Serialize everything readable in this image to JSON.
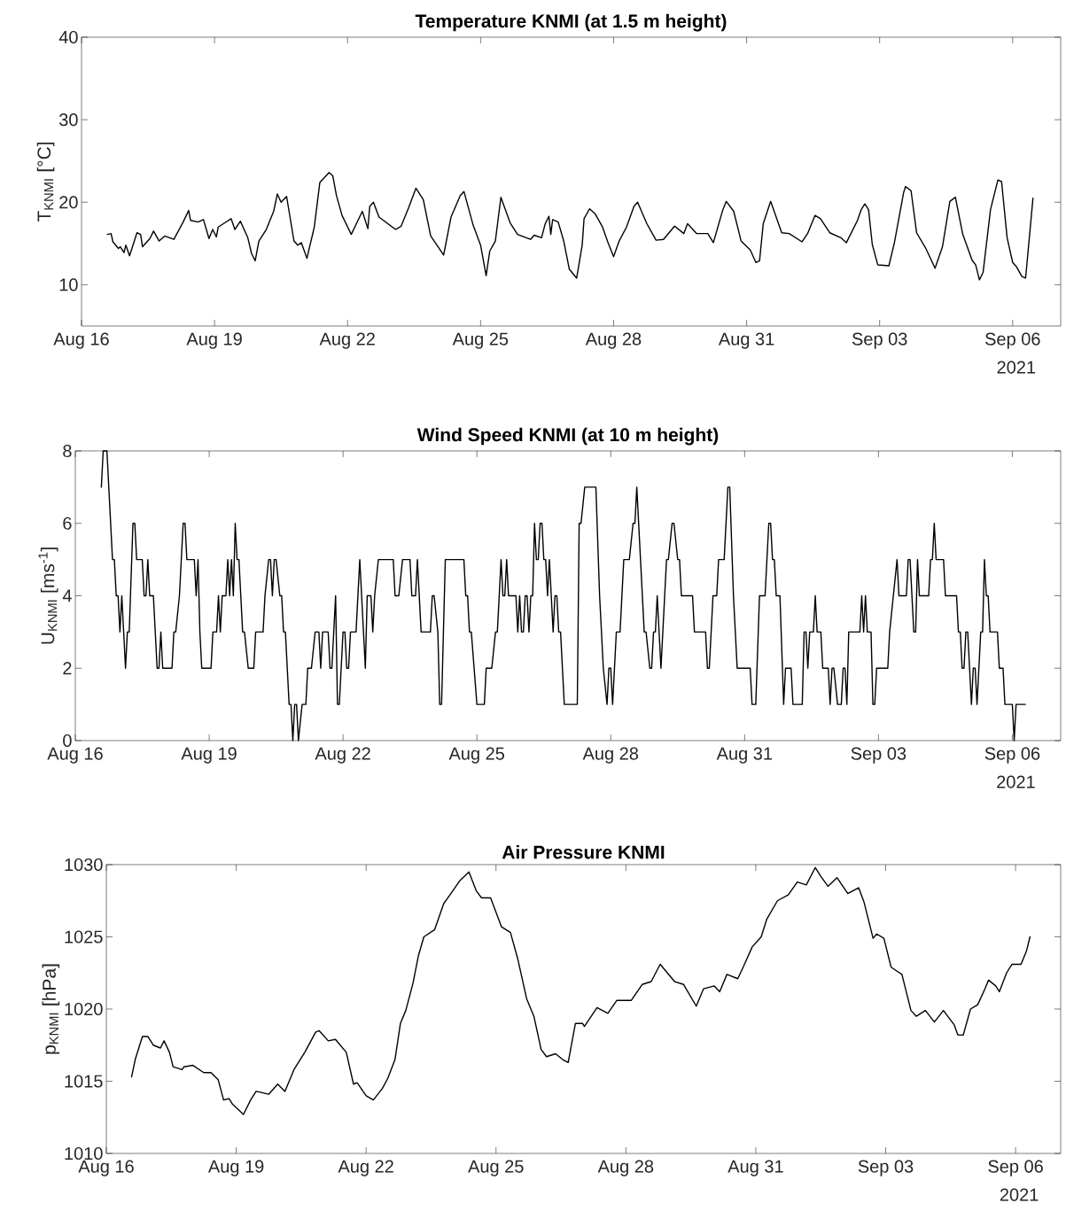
{
  "chart_data": [
    {
      "type": "line",
      "title": "Temperature KNMI (at 1.5 m height)",
      "ylabel": "T$_{KNMI}$ [°C]",
      "color": "#000000",
      "xlim": [
        "2021-08-16",
        "2021-09-07T02:00"
      ],
      "ylim": [
        5,
        40
      ],
      "yticks": [
        10,
        20,
        30,
        40
      ],
      "xticks": [
        {
          "value": "2021-08-16",
          "label": "Aug 16"
        },
        {
          "value": "2021-08-19",
          "label": "Aug 19"
        },
        {
          "value": "2021-08-22",
          "label": "Aug 22"
        },
        {
          "value": "2021-08-25",
          "label": "Aug 25"
        },
        {
          "value": "2021-08-28",
          "label": "Aug 28"
        },
        {
          "value": "2021-08-31",
          "label": "Aug 31"
        },
        {
          "value": "2021-09-03",
          "label": "Sep 03"
        },
        {
          "value": "2021-09-06",
          "label": "Sep 06"
        }
      ],
      "annotations": [
        "2021"
      ],
      "x": [
        "2021-08-16T14:00",
        "2021-08-16T16:00",
        "2021-08-16T17:00",
        "2021-08-16T20:00",
        "2021-08-16T21:00",
        "2021-08-16T23:00",
        "2021-08-17T00:00",
        "2021-08-17T02:00",
        "2021-08-17T06:00",
        "2021-08-17T08:00",
        "2021-08-17T09:00",
        "2021-08-17T13:00",
        "2021-08-17T15:00",
        "2021-08-17T18:00",
        "2021-08-17T21:00",
        "2021-08-18T02:00",
        "2021-08-18T07:00",
        "2021-08-18T10:00",
        "2021-08-18T11:00",
        "2021-08-18T15:00",
        "2021-08-18T18:00",
        "2021-08-18T21:00",
        "2021-08-18T23:00",
        "2021-08-19T01:00",
        "2021-08-19T02:00",
        "2021-08-19T09:00",
        "2021-08-19T11:00",
        "2021-08-19T14:00",
        "2021-08-19T18:00",
        "2021-08-19T20:00",
        "2021-08-19T22:00",
        "2021-08-20T00:00",
        "2021-08-20T04:00",
        "2021-08-20T08:00",
        "2021-08-20T10:00",
        "2021-08-20T12:00",
        "2021-08-20T15:00",
        "2021-08-20T19:00",
        "2021-08-20T21:00",
        "2021-08-20T23:00",
        "2021-08-21T02:00",
        "2021-08-21T06:00",
        "2021-08-21T09:00",
        "2021-08-21T14:00",
        "2021-08-21T16:00",
        "2021-08-21T18:00",
        "2021-08-21T21:00",
        "2021-08-22T02:00",
        "2021-08-22T08:00",
        "2021-08-22T11:00",
        "2021-08-22T12:00",
        "2021-08-22T14:00",
        "2021-08-22T17:00",
        "2021-08-23T02:00",
        "2021-08-23T05:00",
        "2021-08-23T09:00",
        "2021-08-23T13:00",
        "2021-08-23T17:00",
        "2021-08-23T21:00",
        "2021-08-24T04:00",
        "2021-08-24T08:00",
        "2021-08-24T13:00",
        "2021-08-24T15:00",
        "2021-08-24T20:00",
        "2021-08-25T00:00",
        "2021-08-25T03:00",
        "2021-08-25T05:00",
        "2021-08-25T08:00",
        "2021-08-25T11:00",
        "2021-08-25T16:00",
        "2021-08-25T20:00",
        "2021-08-26T03:00",
        "2021-08-26T05:00",
        "2021-08-26T09:00",
        "2021-08-26T11:00",
        "2021-08-26T13:00",
        "2021-08-26T14:00",
        "2021-08-26T15:00",
        "2021-08-26T18:00",
        "2021-08-26T21:00",
        "2021-08-27T00:00",
        "2021-08-27T04:00",
        "2021-08-27T07:00",
        "2021-08-27T08:00",
        "2021-08-27T11:00",
        "2021-08-27T14:00",
        "2021-08-27T18:00",
        "2021-08-27T21:00",
        "2021-08-28T00:00",
        "2021-08-28T03:00",
        "2021-08-28T07:00",
        "2021-08-28T11:00",
        "2021-08-28T13:00",
        "2021-08-28T18:00",
        "2021-08-28T23:00",
        "2021-08-29T03:00",
        "2021-08-29T09:00",
        "2021-08-29T14:00",
        "2021-08-29T16:00",
        "2021-08-29T21:00",
        "2021-08-30T03:00",
        "2021-08-30T06:00",
        "2021-08-30T11:00",
        "2021-08-30T13:00",
        "2021-08-30T17:00",
        "2021-08-30T21:00",
        "2021-08-31T02:00",
        "2021-08-31T05:00",
        "2021-08-31T07:00",
        "2021-08-31T09:00",
        "2021-08-31T13:00",
        "2021-08-31T19:00",
        "2021-08-31T23:00",
        "2021-09-01T06:00",
        "2021-09-01T09:00",
        "2021-09-01T13:00",
        "2021-09-01T16:00",
        "2021-09-01T21:00",
        "2021-09-02T03:00",
        "2021-09-02T06:00",
        "2021-09-02T12:00",
        "2021-09-02T14:00",
        "2021-09-02T16:00",
        "2021-09-02T18:00",
        "2021-09-02T20:00",
        "2021-09-02T23:00",
        "2021-09-03T05:00",
        "2021-09-03T08:00",
        "2021-09-03T13:00",
        "2021-09-03T14:00",
        "2021-09-03T17:00",
        "2021-09-03T20:00",
        "2021-09-04T01:00",
        "2021-09-04T06:00",
        "2021-09-04T10:00",
        "2021-09-04T14:00",
        "2021-09-04T17:00",
        "2021-09-04T21:00",
        "2021-09-05T02:00",
        "2021-09-05T04:00",
        "2021-09-05T06:00",
        "2021-09-05T08:00",
        "2021-09-05T12:00",
        "2021-09-05T16:00",
        "2021-09-05T18:00",
        "2021-09-05T21:00",
        "2021-09-06T00:00",
        "2021-09-06T02:00",
        "2021-09-06T05:00",
        "2021-09-06T07:00",
        "2021-09-06T11:00"
      ],
      "values": [
        16.1,
        16.2,
        15.2,
        14.4,
        14.6,
        13.9,
        14.8,
        13.5,
        16.3,
        16.1,
        14.6,
        15.6,
        16.5,
        15.3,
        15.9,
        15.5,
        17.6,
        19.0,
        17.8,
        17.6,
        17.9,
        15.6,
        16.7,
        15.8,
        17.0,
        18.0,
        16.7,
        17.7,
        15.7,
        13.8,
        12.9,
        15.3,
        16.7,
        18.9,
        21.0,
        20.0,
        20.7,
        15.3,
        14.8,
        15.1,
        13.2,
        17.0,
        22.4,
        23.6,
        23.2,
        20.8,
        18.4,
        16.1,
        18.9,
        16.8,
        19.5,
        20.0,
        18.2,
        16.7,
        17.1,
        19.3,
        21.7,
        20.3,
        15.9,
        13.6,
        18.2,
        20.8,
        21.3,
        17.2,
        14.8,
        11.1,
        14.1,
        15.3,
        20.6,
        17.5,
        16.1,
        15.5,
        16.0,
        15.7,
        17.4,
        18.3,
        16.1,
        17.9,
        17.6,
        15.3,
        11.9,
        10.8,
        14.8,
        18.0,
        19.2,
        18.6,
        17.0,
        15.1,
        13.4,
        15.3,
        17.0,
        19.5,
        20.0,
        17.4,
        15.4,
        15.5,
        17.1,
        16.2,
        17.4,
        16.2,
        16.2,
        15.1,
        19.0,
        20.1,
        18.9,
        15.3,
        14.2,
        12.7,
        12.9,
        17.4,
        20.1,
        16.3,
        16.2,
        15.2,
        16.2,
        18.4,
        18.0,
        16.3,
        15.7,
        15.1,
        17.8,
        19.1,
        19.8,
        19.1,
        14.9,
        12.4,
        12.3,
        15.1,
        21.2,
        21.9,
        21.4,
        16.3,
        14.4,
        12.0,
        14.6,
        20.1,
        20.6,
        16.1,
        13.0,
        12.4,
        10.6,
        11.5,
        19.1,
        22.7,
        22.5,
        15.7,
        12.7,
        12.2,
        11.0,
        10.8,
        20.5
      ]
    },
    {
      "type": "line",
      "title": "Wind Speed KNMI (at 10 m height)",
      "ylabel": "U$_{KNMI}$ [ms$^{-1}$]",
      "color": "#000000",
      "xlim": [
        "2021-08-16",
        "2021-09-07T02:00"
      ],
      "ylim": [
        0,
        8
      ],
      "yticks": [
        0,
        2,
        4,
        6,
        8
      ],
      "xticks": [
        {
          "value": "2021-08-16",
          "label": "Aug 16"
        },
        {
          "value": "2021-08-19",
          "label": "Aug 19"
        },
        {
          "value": "2021-08-22",
          "label": "Aug 22"
        },
        {
          "value": "2021-08-25",
          "label": "Aug 25"
        },
        {
          "value": "2021-08-28",
          "label": "Aug 28"
        },
        {
          "value": "2021-08-31",
          "label": "Aug 31"
        },
        {
          "value": "2021-09-03",
          "label": "Sep 03"
        },
        {
          "value": "2021-09-06",
          "label": "Sep 06"
        }
      ],
      "annotations": [
        "2021"
      ],
      "x": [
        "2021-08-16T14:00",
        "2021-08-16T15:00",
        "2021-08-16T17:00",
        "2021-08-16T20:00",
        "2021-08-16T21:00",
        "2021-08-16T22:00",
        "2021-08-16T23:00",
        "2021-08-17T00:00",
        "2021-08-17T01:00",
        "2021-08-17T03:00",
        "2021-08-17T04:00",
        "2021-08-17T05:00",
        "2021-08-17T07:00",
        "2021-08-17T08:00",
        "2021-08-17T09:00",
        "2021-08-17T12:00",
        "2021-08-17T13:00",
        "2021-08-17T14:00",
        "2021-08-17T15:00",
        "2021-08-17T16:00",
        "2021-08-17T18:00",
        "2021-08-17T20:00",
        "2021-08-17T21:00",
        "2021-08-17T22:00",
        "2021-08-17T23:00",
        "2021-08-18T04:00",
        "2021-08-18T05:00",
        "2021-08-18T06:00",
        "2021-08-18T08:00",
        "2021-08-18T10:00",
        "2021-08-18T11:00",
        "2021-08-18T12:00",
        "2021-08-18T16:00",
        "2021-08-18T17:00",
        "2021-08-18T18:00",
        "2021-08-18T19:00",
        "2021-08-18T20:00",
        "2021-08-19T01:00",
        "2021-08-19T02:00",
        "2021-08-19T04:00",
        "2021-08-19T05:00",
        "2021-08-19T06:00",
        "2021-08-19T07:00",
        "2021-08-19T09:00",
        "2021-08-19T10:00",
        "2021-08-19T11:00",
        "2021-08-19T12:00",
        "2021-08-19T13:00",
        "2021-08-19T14:00",
        "2021-08-19T15:00",
        "2021-08-19T16:00",
        "2021-08-19T18:00",
        "2021-08-19T19:00",
        "2021-08-19T21:00",
        "2021-08-20T00:00",
        "2021-08-20T01:00",
        "2021-08-20T05:00",
        "2021-08-20T06:00",
        "2021-08-20T08:00",
        "2021-08-20T09:00",
        "2021-08-20T10:00",
        "2021-08-20T11:00",
        "2021-08-20T12:00",
        "2021-08-20T14:00",
        "2021-08-20T15:00",
        "2021-08-20T16:00",
        "2021-08-20T17:00",
        "2021-08-20T19:00",
        "2021-08-20T20:00",
        "2021-08-20T21:00",
        "2021-08-20T22:00",
        "2021-08-20T23:00",
        "2021-08-21T00:00",
        "2021-08-21T02:00",
        "2021-08-21T04:00",
        "2021-08-21T05:00",
        "2021-08-21T07:00",
        "2021-08-21T09:00",
        "2021-08-21T11:00",
        "2021-08-21T12:00",
        "2021-08-21T13:00",
        "2021-08-21T16:00",
        "2021-08-21T17:00",
        "2021-08-21T18:00",
        "2021-08-21T20:00",
        "2021-08-21T21:00",
        "2021-08-21T22:00",
        "2021-08-22T00:00",
        "2021-08-22T01:00",
        "2021-08-22T02:00",
        "2021-08-22T03:00",
        "2021-08-22T04:00",
        "2021-08-22T07:00",
        "2021-08-22T09:00",
        "2021-08-22T12:00",
        "2021-08-22T13:00",
        "2021-08-22T15:00",
        "2021-08-22T16:00",
        "2021-08-22T17:00",
        "2021-08-22T19:00",
        "2021-08-23T03:00",
        "2021-08-23T04:00",
        "2021-08-23T06:00",
        "2021-08-23T08:00",
        "2021-08-23T12:00",
        "2021-08-23T13:00",
        "2021-08-23T15:00",
        "2021-08-23T16:00",
        "2021-08-23T18:00",
        "2021-08-23T23:00",
        "2021-08-24T00:00",
        "2021-08-24T01:00",
        "2021-08-24T03:00",
        "2021-08-24T04:00",
        "2021-08-24T05:00",
        "2021-08-24T07:00",
        "2021-08-24T17:00",
        "2021-08-24T18:00",
        "2021-08-24T19:00",
        "2021-08-24T20:00",
        "2021-08-24T21:00",
        "2021-08-25T00:00",
        "2021-08-25T04:00",
        "2021-08-25T05:00",
        "2021-08-25T08:00",
        "2021-08-25T10:00",
        "2021-08-25T11:00",
        "2021-08-25T13:00",
        "2021-08-25T14:00",
        "2021-08-25T15:00",
        "2021-08-25T16:00",
        "2021-08-25T17:00",
        "2021-08-25T21:00",
        "2021-08-25T22:00",
        "2021-08-25T23:00",
        "2021-08-26T00:00",
        "2021-08-26T01:00",
        "2021-08-26T02:00",
        "2021-08-26T03:00",
        "2021-08-26T04:00",
        "2021-08-26T05:00",
        "2021-08-26T06:00",
        "2021-08-26T07:00",
        "2021-08-26T08:00",
        "2021-08-26T09:00",
        "2021-08-26T10:00",
        "2021-08-26T11:00",
        "2021-08-26T12:00",
        "2021-08-26T13:00",
        "2021-08-26T14:00",
        "2021-08-26T15:00",
        "2021-08-26T16:00",
        "2021-08-26T17:00",
        "2021-08-26T18:00",
        "2021-08-26T19:00",
        "2021-08-26T20:00",
        "2021-08-26T21:00",
        "2021-08-26T23:00",
        "2021-08-27T02:00",
        "2021-08-27T06:00",
        "2021-08-27T07:00",
        "2021-08-27T08:00",
        "2021-08-27T10:00",
        "2021-08-27T16:00",
        "2021-08-27T18:00",
        "2021-08-27T20:00",
        "2021-08-27T22:00",
        "2021-08-27T23:00",
        "2021-08-28T00:00",
        "2021-08-28T01:00",
        "2021-08-28T03:00",
        "2021-08-28T05:00",
        "2021-08-28T07:00",
        "2021-08-28T10:00",
        "2021-08-28T12:00",
        "2021-08-28T13:00",
        "2021-08-28T14:00",
        "2021-08-28T18:00",
        "2021-08-28T19:00",
        "2021-08-28T21:00",
        "2021-08-28T22:00",
        "2021-08-28T23:00",
        "2021-08-29T00:00",
        "2021-08-29T01:00",
        "2021-08-29T03:00",
        "2021-08-29T06:00",
        "2021-08-29T07:00",
        "2021-08-29T09:00",
        "2021-08-29T10:00",
        "2021-08-29T12:00",
        "2021-08-29T13:00",
        "2021-08-29T14:00",
        "2021-08-29T20:00",
        "2021-08-29T21:00",
        "2021-08-30T03:00",
        "2021-08-30T04:00",
        "2021-08-30T05:00",
        "2021-08-30T07:00",
        "2021-08-30T09:00",
        "2021-08-30T10:00",
        "2021-08-30T13:00",
        "2021-08-30T15:00",
        "2021-08-30T16:00",
        "2021-08-30T18:00",
        "2021-08-30T20:00",
        "2021-08-31T03:00",
        "2021-08-31T04:00",
        "2021-08-31T06:00",
        "2021-08-31T08:00",
        "2021-08-31T11:00",
        "2021-08-31T13:00",
        "2021-08-31T14:00",
        "2021-08-31T15:00",
        "2021-08-31T16:00",
        "2021-08-31T17:00",
        "2021-08-31T19:00",
        "2021-08-31T21:00",
        "2021-08-31T22:00",
        "2021-09-01T01:00",
        "2021-09-01T02:00",
        "2021-09-01T07:00",
        "2021-09-01T08:00",
        "2021-09-01T09:00",
        "2021-09-01T10:00",
        "2021-09-01T11:00",
        "2021-09-01T13:00",
        "2021-09-01T14:00",
        "2021-09-01T15:00",
        "2021-09-01T17:00",
        "2021-09-01T18:00",
        "2021-09-01T21:00",
        "2021-09-01T22:00",
        "2021-09-01T23:00",
        "2021-09-02T00:00",
        "2021-09-02T02:00",
        "2021-09-02T04:00",
        "2021-09-02T05:00",
        "2021-09-02T06:00",
        "2021-09-02T07:00",
        "2021-09-02T08:00",
        "2021-09-02T14:00",
        "2021-09-02T15:00",
        "2021-09-02T16:00",
        "2021-09-02T17:00",
        "2021-09-02T18:00",
        "2021-09-02T20:00",
        "2021-09-02T21:00",
        "2021-09-02T22:00",
        "2021-09-02T23:00",
        "2021-09-03T05:00",
        "2021-09-03T06:00",
        "2021-09-03T08:00",
        "2021-09-03T10:00",
        "2021-09-03T11:00",
        "2021-09-03T15:00",
        "2021-09-03T16:00",
        "2021-09-03T17:00",
        "2021-09-03T19:00",
        "2021-09-03T20:00",
        "2021-09-03T21:00",
        "2021-09-03T22:00",
        "2021-09-04T03:00",
        "2021-09-04T04:00",
        "2021-09-04T05:00",
        "2021-09-04T06:00",
        "2021-09-04T07:00",
        "2021-09-04T11:00",
        "2021-09-04T12:00",
        "2021-09-04T18:00",
        "2021-09-04T19:00",
        "2021-09-04T20:00",
        "2021-09-04T21:00",
        "2021-09-04T22:00",
        "2021-09-04T23:00",
        "2021-09-05T00:00",
        "2021-09-05T02:00",
        "2021-09-05T03:00",
        "2021-09-05T04:00",
        "2021-09-05T05:00",
        "2021-09-05T07:00",
        "2021-09-05T08:00",
        "2021-09-05T09:00",
        "2021-09-05T10:00",
        "2021-09-05T11:00",
        "2021-09-05T12:00",
        "2021-09-05T16:00",
        "2021-09-05T17:00",
        "2021-09-05T19:00",
        "2021-09-05T20:00",
        "2021-09-06T00:00",
        "2021-09-06T01:00",
        "2021-09-06T02:00",
        "2021-09-06T07:00"
      ],
      "values": [
        7,
        8,
        8,
        5,
        5,
        4,
        4,
        3,
        4,
        2,
        3,
        3,
        6,
        6,
        5,
        5,
        4,
        4,
        5,
        4,
        4,
        2,
        2,
        3,
        2,
        2,
        3,
        3,
        4,
        6,
        6,
        5,
        5,
        4,
        5,
        3,
        2,
        2,
        3,
        3,
        4,
        3,
        4,
        4,
        5,
        4,
        5,
        4,
        6,
        5,
        5,
        3,
        3,
        2,
        2,
        3,
        3,
        4,
        5,
        5,
        4,
        5,
        5,
        4,
        4,
        3,
        3,
        1,
        1,
        0,
        1,
        1,
        0,
        1,
        1,
        2,
        2,
        3,
        3,
        2,
        3,
        3,
        2,
        2,
        4,
        1,
        1,
        3,
        3,
        2,
        2,
        3,
        3,
        5,
        2,
        4,
        4,
        3,
        4,
        5,
        5,
        4,
        4,
        5,
        5,
        4,
        4,
        5,
        3,
        3,
        4,
        4,
        3,
        1,
        1,
        5,
        5,
        4,
        4,
        3,
        3,
        1,
        1,
        2,
        2,
        3,
        3,
        5,
        4,
        4,
        5,
        4,
        4,
        3,
        4,
        3,
        3,
        4,
        4,
        3,
        4,
        4,
        6,
        5,
        5,
        6,
        6,
        5,
        5,
        4,
        5,
        4,
        3,
        4,
        4,
        3,
        3,
        1,
        1,
        1,
        6,
        6,
        7,
        7,
        4,
        2,
        1,
        2,
        2,
        1,
        3,
        3,
        5,
        5,
        6,
        6,
        7,
        3,
        3,
        2,
        2,
        3,
        3,
        4,
        2,
        5,
        5,
        6,
        6,
        5,
        5,
        4,
        4,
        3,
        3,
        2,
        2,
        4,
        4,
        5,
        5,
        7,
        7,
        4,
        2,
        2,
        1,
        1,
        4,
        4,
        6,
        6,
        5,
        5,
        4,
        4,
        1,
        2,
        2,
        1,
        1,
        3,
        3,
        2,
        3,
        3,
        4,
        3,
        3,
        2,
        2,
        1,
        2,
        2,
        1,
        1,
        2,
        2,
        1,
        3,
        3,
        4,
        3,
        4,
        3,
        3,
        1,
        1,
        2,
        2,
        3,
        4,
        5,
        4,
        4,
        5,
        5,
        3,
        3,
        5,
        4,
        4,
        5,
        5,
        6,
        5,
        5,
        4,
        4,
        3,
        3,
        2,
        2,
        3,
        3,
        1,
        2,
        2,
        1,
        3,
        3,
        5,
        4,
        4,
        3,
        3,
        2,
        2,
        1,
        1,
        0,
        1,
        1
      ]
    },
    {
      "type": "line",
      "title": "Air Pressure KNMI",
      "ylabel": "p$_{KNMI}$ [hPa]",
      "color": "#000000",
      "xlim": [
        "2021-08-16",
        "2021-09-07T01:00"
      ],
      "ylim": [
        1010,
        1030
      ],
      "yticks": [
        1010,
        1015,
        1020,
        1025,
        1030
      ],
      "xticks": [
        {
          "value": "2021-08-16",
          "label": "Aug 16"
        },
        {
          "value": "2021-08-19",
          "label": "Aug 19"
        },
        {
          "value": "2021-08-22",
          "label": "Aug 22"
        },
        {
          "value": "2021-08-25",
          "label": "Aug 25"
        },
        {
          "value": "2021-08-28",
          "label": "Aug 28"
        },
        {
          "value": "2021-08-31",
          "label": "Aug 31"
        },
        {
          "value": "2021-09-03",
          "label": "Sep 03"
        },
        {
          "value": "2021-09-06",
          "label": "Sep 06"
        }
      ],
      "annotations": [
        "2021"
      ],
      "x": [
        "2021-08-16T14:00",
        "2021-08-16T16:00",
        "2021-08-16T20:00",
        "2021-08-16T23:00",
        "2021-08-17T02:00",
        "2021-08-17T06:00",
        "2021-08-17T08:00",
        "2021-08-17T11:00",
        "2021-08-17T13:00",
        "2021-08-17T18:00",
        "2021-08-17T19:00",
        "2021-08-18T00:00",
        "2021-08-18T06:00",
        "2021-08-18T10:00",
        "2021-08-18T14:00",
        "2021-08-18T17:00",
        "2021-08-18T20:00",
        "2021-08-18T22:00",
        "2021-08-19T04:00",
        "2021-08-19T08:00",
        "2021-08-19T11:00",
        "2021-08-19T18:00",
        "2021-08-19T23:00",
        "2021-08-20T03:00",
        "2021-08-20T08:00",
        "2021-08-20T14:00",
        "2021-08-20T20:00",
        "2021-08-20T22:00",
        "2021-08-21T03:00",
        "2021-08-21T07:00",
        "2021-08-21T13:00",
        "2021-08-21T17:00",
        "2021-08-21T19:00",
        "2021-08-22T00:00",
        "2021-08-22T04:00",
        "2021-08-22T09:00",
        "2021-08-22T12:00",
        "2021-08-22T16:00",
        "2021-08-22T19:00",
        "2021-08-22T22:00",
        "2021-08-23T02:00",
        "2021-08-23T05:00",
        "2021-08-23T08:00",
        "2021-08-23T14:00",
        "2021-08-23T19:00",
        "2021-08-23T23:00",
        "2021-08-24T04:00",
        "2021-08-24T09:00",
        "2021-08-24T13:00",
        "2021-08-24T16:00",
        "2021-08-24T21:00",
        "2021-08-25T03:00",
        "2021-08-25T08:00",
        "2021-08-25T12:00",
        "2021-08-25T17:00",
        "2021-08-25T21:00",
        "2021-08-26T01:00",
        "2021-08-26T04:00",
        "2021-08-26T09:00",
        "2021-08-26T13:00",
        "2021-08-26T16:00",
        "2021-08-26T20:00",
        "2021-08-27T00:00",
        "2021-08-27T01:00",
        "2021-08-27T08:00",
        "2021-08-27T14:00",
        "2021-08-27T19:00",
        "2021-08-28T03:00",
        "2021-08-28T09:00",
        "2021-08-28T14:00",
        "2021-08-28T19:00",
        "2021-08-29T03:00",
        "2021-08-29T08:00",
        "2021-08-29T15:00",
        "2021-08-29T19:00",
        "2021-08-30T01:00",
        "2021-08-30T04:00",
        "2021-08-30T08:00",
        "2021-08-30T14:00",
        "2021-08-30T17:00",
        "2021-08-30T22:00",
        "2021-08-31T03:00",
        "2021-08-31T06:00",
        "2021-08-31T12:00",
        "2021-08-31T18:00",
        "2021-08-31T23:00",
        "2021-09-01T04:00",
        "2021-09-01T09:00",
        "2021-09-01T12:00",
        "2021-09-01T16:00",
        "2021-09-01T21:00",
        "2021-09-02T03:00",
        "2021-09-02T09:00",
        "2021-09-02T12:00",
        "2021-09-02T17:00",
        "2021-09-02T19:00",
        "2021-09-02T23:00",
        "2021-09-03T03:00",
        "2021-09-03T09:00",
        "2021-09-03T14:00",
        "2021-09-03T17:00",
        "2021-09-03T22:00",
        "2021-09-04T03:00",
        "2021-09-04T08:00",
        "2021-09-04T14:00",
        "2021-09-04T16:00",
        "2021-09-04T19:00",
        "2021-09-04T23:00",
        "2021-09-05T03:00",
        "2021-09-05T07:00",
        "2021-09-05T09:00",
        "2021-09-05T13:00",
        "2021-09-05T15:00",
        "2021-09-05T19:00",
        "2021-09-05T22:00",
        "2021-09-06T03:00",
        "2021-09-06T06:00",
        "2021-09-06T08:00"
      ],
      "values": [
        1015.3,
        1016.5,
        1018.1,
        1018.1,
        1017.5,
        1017.3,
        1017.8,
        1017.0,
        1016.0,
        1015.8,
        1016.0,
        1016.1,
        1015.6,
        1015.6,
        1015.1,
        1013.7,
        1013.8,
        1013.4,
        1012.7,
        1013.7,
        1014.3,
        1014.1,
        1014.8,
        1014.3,
        1015.8,
        1017.0,
        1018.4,
        1018.5,
        1017.8,
        1017.9,
        1017.0,
        1014.8,
        1014.9,
        1014.0,
        1013.7,
        1014.5,
        1015.2,
        1016.5,
        1019.0,
        1019.9,
        1021.8,
        1023.7,
        1025.0,
        1025.5,
        1027.3,
        1028.0,
        1028.9,
        1029.5,
        1028.2,
        1027.7,
        1027.7,
        1025.7,
        1025.3,
        1023.5,
        1020.7,
        1019.5,
        1017.2,
        1016.7,
        1016.9,
        1016.5,
        1016.3,
        1019.0,
        1019.0,
        1018.8,
        1020.1,
        1019.7,
        1020.6,
        1020.6,
        1021.7,
        1021.9,
        1023.1,
        1021.9,
        1021.7,
        1020.2,
        1021.4,
        1021.6,
        1021.2,
        1022.4,
        1022.1,
        1022.9,
        1024.3,
        1025.0,
        1026.2,
        1027.5,
        1027.9,
        1028.8,
        1028.6,
        1029.8,
        1029.2,
        1028.5,
        1029.1,
        1028.0,
        1028.4,
        1027.4,
        1024.9,
        1025.2,
        1024.9,
        1022.9,
        1022.4,
        1019.9,
        1019.5,
        1019.9,
        1019.1,
        1019.9,
        1018.9,
        1018.2,
        1018.2,
        1020.0,
        1020.3,
        1021.4,
        1022.0,
        1021.6,
        1021.2,
        1022.5,
        1023.1,
        1023.1,
        1024.0,
        1025.0
      ]
    }
  ]
}
